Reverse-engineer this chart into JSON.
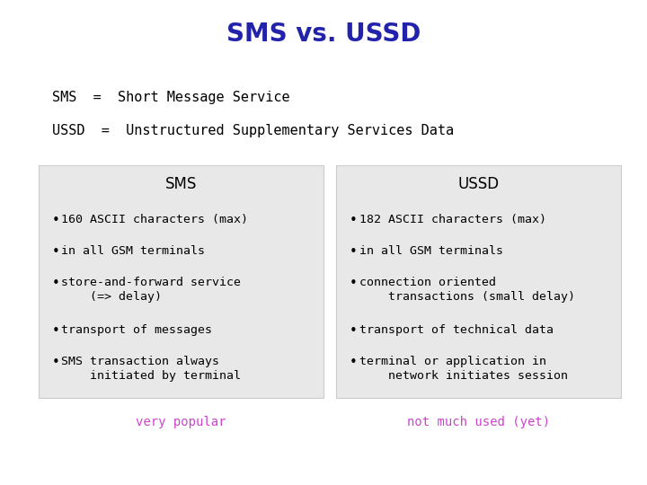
{
  "title": "SMS vs. USSD",
  "title_color": "#2222AA",
  "title_fontsize": 20,
  "subtitle_line1": "SMS  =  Short Message Service",
  "subtitle_line2": "USSD  =  Unstructured Supplementary Services Data",
  "subtitle_fontsize": 11,
  "subtitle_color": "#000000",
  "background_color": "#ffffff",
  "box_bg_color": "#e8e8e8",
  "box_edge_color": "#cccccc",
  "sms_header": "SMS",
  "ussd_header": "USSD",
  "header_fontsize": 12,
  "header_color": "#000000",
  "sms_bullets": [
    "160 ASCII characters (max)",
    "in all GSM terminals",
    "store-and-forward service\n    (=> delay)",
    "transport of messages",
    "SMS transaction always\n    initiated by terminal"
  ],
  "ussd_bullets": [
    "182 ASCII characters (max)",
    "in all GSM terminals",
    "connection oriented\n    transactions (small delay)",
    "transport of technical data",
    "terminal or application in\n    network initiates session"
  ],
  "bullet_fontsize": 9.5,
  "bullet_color": "#000000",
  "sms_footer": "very popular",
  "ussd_footer": "not much used (yet)",
  "footer_color": "#CC44CC",
  "footer_fontsize": 10
}
